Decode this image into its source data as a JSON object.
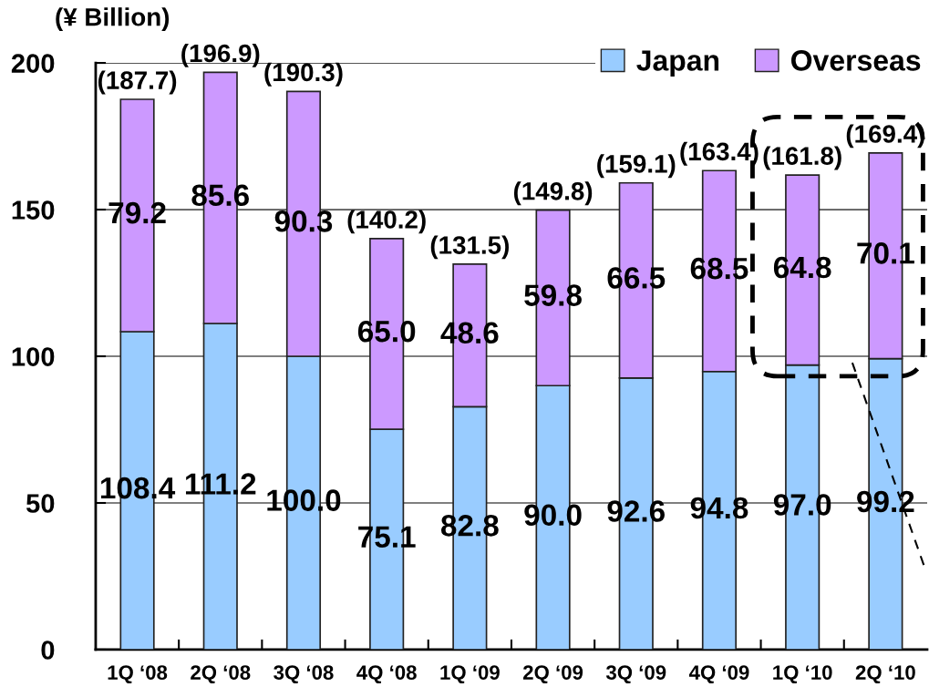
{
  "chart_data": {
    "type": "bar",
    "stacked": true,
    "ylabel": "(¥ Billion)",
    "categories": [
      "1Q ‘08",
      "2Q ‘08",
      "3Q ‘08",
      "4Q ‘08",
      "1Q ‘09",
      "2Q ‘09",
      "3Q ‘09",
      "4Q ‘09",
      "1Q ‘10",
      "2Q ‘10"
    ],
    "series": [
      {
        "name": "Japan",
        "color": "#99ccff",
        "values": [
          108.4,
          111.2,
          100.0,
          75.1,
          82.8,
          90.0,
          92.6,
          94.8,
          97.0,
          99.2
        ],
        "value_labels": [
          "108.4",
          "111.2",
          "100.0",
          "75.1",
          "82.8",
          "90.0",
          "92.6",
          "94.8",
          "97.0",
          "99.2"
        ]
      },
      {
        "name": "Overseas",
        "color": "#cc99ff",
        "values": [
          79.2,
          85.6,
          90.3,
          65.0,
          48.6,
          59.8,
          66.5,
          68.5,
          64.8,
          70.1
        ],
        "value_labels": [
          "79.2",
          "85.6",
          "90.3",
          "65.0",
          "48.6",
          "59.8",
          "66.5",
          "68.5",
          "64.8",
          "70.1"
        ]
      }
    ],
    "totals": [
      "(187.7)",
      "(196.9)",
      "(190.3)",
      "(140.2)",
      "(131.5)",
      "(149.8)",
      "(159.1)",
      "(163.4)",
      "(161.8)",
      "(169.4)"
    ],
    "ylim": [
      0,
      200
    ],
    "yticks": [
      0,
      50,
      100,
      150,
      200
    ],
    "grid": "y",
    "legend": "top right"
  }
}
